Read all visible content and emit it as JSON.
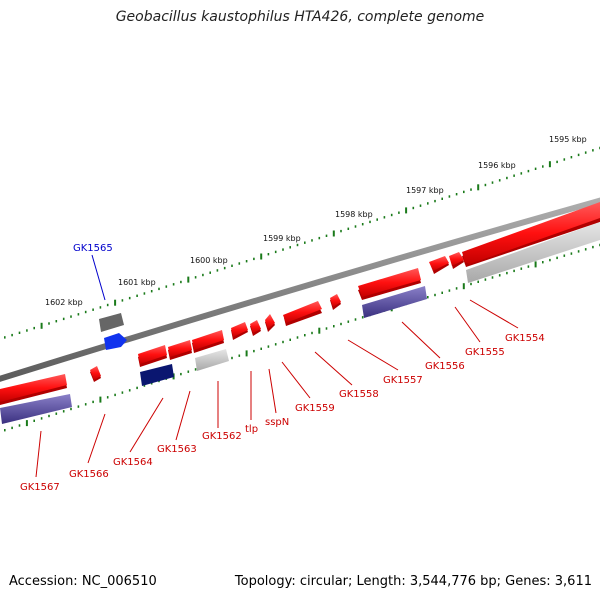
{
  "title": "Geobacillus kaustophilus HTA426, complete genome",
  "footer": {
    "accession": "Accession: NC_006510",
    "summary": "Topology: circular; Length: 3,544,776 bp; Genes: 3,611"
  },
  "scale_ticks": [
    {
      "label": "1595 kbp",
      "kbp": 1595
    },
    {
      "label": "1596 kbp",
      "kbp": 1596
    },
    {
      "label": "1597 kbp",
      "kbp": 1597
    },
    {
      "label": "1598 kbp",
      "kbp": 1598
    },
    {
      "label": "1599 kbp",
      "kbp": 1599
    },
    {
      "label": "1600 kbp",
      "kbp": 1600
    },
    {
      "label": "1601 kbp",
      "kbp": 1601
    },
    {
      "label": "1602 kbp",
      "kbp": 1602
    }
  ],
  "gene_labels": [
    {
      "name": "GK1565",
      "color": "#0000cc"
    },
    {
      "name": "GK1554",
      "color": "#cc0000"
    },
    {
      "name": "GK1555",
      "color": "#cc0000"
    },
    {
      "name": "GK1556",
      "color": "#cc0000"
    },
    {
      "name": "GK1557",
      "color": "#cc0000"
    },
    {
      "name": "GK1558",
      "color": "#cc0000"
    },
    {
      "name": "GK1559",
      "color": "#cc0000"
    },
    {
      "name": "sspN",
      "color": "#cc0000"
    },
    {
      "name": "tlp",
      "color": "#cc0000"
    },
    {
      "name": "GK1562",
      "color": "#cc0000"
    },
    {
      "name": "GK1563",
      "color": "#cc0000"
    },
    {
      "name": "GK1564",
      "color": "#cc0000"
    },
    {
      "name": "GK1566",
      "color": "#cc0000"
    },
    {
      "name": "GK1567",
      "color": "#cc0000"
    }
  ],
  "colors": {
    "backbone": "#777777",
    "scale_tick": "#1a7a1a",
    "gene_forward": "#ff1a1a",
    "gene_forward_shadow": "#b30000",
    "gene_projection": "#5a4f9a",
    "gene_gray": "#c8c8c8",
    "gene_blue": "#1133ee",
    "gene_navy": "#0a1670",
    "gene_dark_gray": "#666666"
  }
}
